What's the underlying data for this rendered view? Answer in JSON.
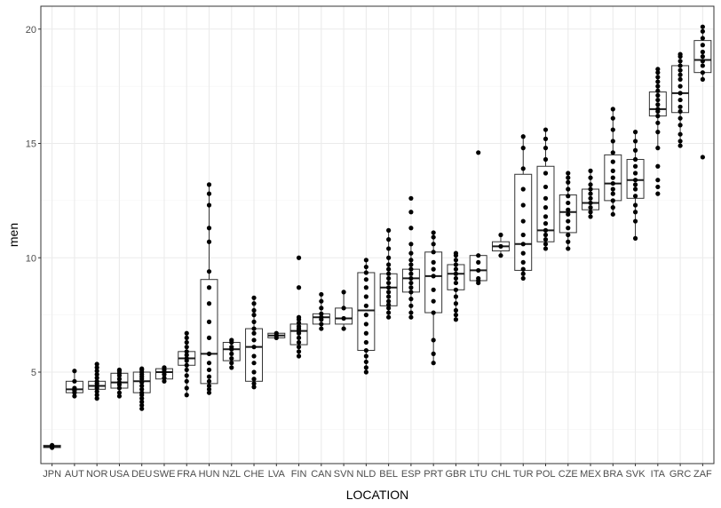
{
  "chart_data": {
    "type": "boxplot",
    "xlabel": "LOCATION",
    "ylabel": "men",
    "ylim": [
      1.0,
      21.0
    ],
    "yticks": [
      5,
      10,
      15,
      20
    ],
    "grid": true,
    "categories": [
      "JPN",
      "AUT",
      "NOR",
      "USA",
      "DEU",
      "SWE",
      "FRA",
      "HUN",
      "NZL",
      "CHE",
      "LVA",
      "FIN",
      "CAN",
      "SVN",
      "NLD",
      "BEL",
      "ESP",
      "PRT",
      "GBR",
      "LTU",
      "CHL",
      "TUR",
      "POL",
      "CZE",
      "MEX",
      "BRA",
      "SVK",
      "ITA",
      "GRC",
      "ZAF"
    ],
    "boxes": [
      {
        "q1": 1.7,
        "median": 1.75,
        "q3": 1.8,
        "whisker_low": 1.7,
        "whisker_high": 1.8
      },
      {
        "q1": 4.1,
        "median": 4.25,
        "q3": 4.6,
        "whisker_low": 3.95,
        "whisker_high": 5.05
      },
      {
        "q1": 4.25,
        "median": 4.4,
        "q3": 4.6,
        "whisker_low": 3.85,
        "whisker_high": 5.35
      },
      {
        "q1": 4.3,
        "median": 4.55,
        "q3": 4.95,
        "whisker_low": 3.95,
        "whisker_high": 5.1
      },
      {
        "q1": 4.1,
        "median": 4.6,
        "q3": 5.0,
        "whisker_low": 3.4,
        "whisker_high": 5.15
      },
      {
        "q1": 4.7,
        "median": 5.0,
        "q3": 5.15,
        "whisker_low": 4.6,
        "whisker_high": 5.2
      },
      {
        "q1": 5.3,
        "median": 5.6,
        "q3": 5.9,
        "whisker_low": 4.0,
        "whisker_high": 6.7
      },
      {
        "q1": 4.5,
        "median": 5.8,
        "q3": 9.05,
        "whisker_low": 4.1,
        "whisker_high": 13.2
      },
      {
        "q1": 5.5,
        "median": 6.0,
        "q3": 6.3,
        "whisker_low": 5.2,
        "whisker_high": 6.4
      },
      {
        "q1": 4.6,
        "median": 6.1,
        "q3": 6.9,
        "whisker_low": 4.35,
        "whisker_high": 8.25
      },
      {
        "q1": 6.5,
        "median": 6.6,
        "q3": 6.7,
        "whisker_low": 6.5,
        "whisker_high": 6.7
      },
      {
        "q1": 6.2,
        "median": 6.8,
        "q3": 7.1,
        "whisker_low": 5.7,
        "whisker_high": 7.4
      },
      {
        "q1": 7.1,
        "median": 7.4,
        "q3": 7.55,
        "whisker_low": 6.9,
        "whisker_high": 8.4
      },
      {
        "q1": 7.1,
        "median": 7.35,
        "q3": 7.8,
        "whisker_low": 6.9,
        "whisker_high": 8.5
      },
      {
        "q1": 5.95,
        "median": 7.7,
        "q3": 9.35,
        "whisker_low": 5.0,
        "whisker_high": 9.9
      },
      {
        "q1": 7.9,
        "median": 8.7,
        "q3": 9.3,
        "whisker_low": 7.4,
        "whisker_high": 11.2
      },
      {
        "q1": 8.5,
        "median": 9.1,
        "q3": 9.5,
        "whisker_low": 7.4,
        "whisker_high": 10.6
      },
      {
        "q1": 7.6,
        "median": 9.2,
        "q3": 10.25,
        "whisker_low": 5.4,
        "whisker_high": 11.1
      },
      {
        "q1": 8.6,
        "median": 9.3,
        "q3": 9.7,
        "whisker_low": 7.3,
        "whisker_high": 10.2
      },
      {
        "q1": 9.0,
        "median": 9.45,
        "q3": 10.1,
        "whisker_low": 8.9,
        "whisker_high": 10.1
      },
      {
        "q1": 10.3,
        "median": 10.5,
        "q3": 10.7,
        "whisker_low": 10.1,
        "whisker_high": 11.0
      },
      {
        "q1": 9.45,
        "median": 10.6,
        "q3": 13.65,
        "whisker_low": 9.1,
        "whisker_high": 15.4
      },
      {
        "q1": 10.7,
        "median": 11.2,
        "q3": 14.0,
        "whisker_low": 10.4,
        "whisker_high": 15.6
      },
      {
        "q1": 11.1,
        "median": 12.0,
        "q3": 12.75,
        "whisker_low": 10.4,
        "whisker_high": 13.7
      },
      {
        "q1": 12.1,
        "median": 12.4,
        "q3": 13.0,
        "whisker_low": 11.8,
        "whisker_high": 13.8
      },
      {
        "q1": 12.5,
        "median": 13.25,
        "q3": 14.5,
        "whisker_low": 11.9,
        "whisker_high": 16.5
      },
      {
        "q1": 12.6,
        "median": 13.4,
        "q3": 14.3,
        "whisker_low": 10.85,
        "whisker_high": 15.5
      },
      {
        "q1": 16.2,
        "median": 16.5,
        "q3": 17.25,
        "whisker_low": 14.8,
        "whisker_high": 18.25
      },
      {
        "q1": 16.35,
        "median": 17.2,
        "q3": 18.4,
        "whisker_low": 15.0,
        "whisker_high": 18.9
      },
      {
        "q1": 18.1,
        "median": 18.65,
        "q3": 19.5,
        "whisker_low": 17.8,
        "whisker_high": 20.1
      }
    ],
    "points": [
      [
        1.7,
        1.75,
        1.8
      ],
      [
        3.95,
        4.1,
        4.2,
        4.3,
        4.6,
        5.05
      ],
      [
        3.85,
        4.0,
        4.15,
        4.3,
        4.4,
        4.5,
        4.6,
        4.75,
        4.9,
        5.05,
        5.2,
        5.35
      ],
      [
        3.95,
        4.1,
        4.3,
        4.45,
        4.55,
        4.7,
        4.85,
        4.95,
        5.05,
        5.1
      ],
      [
        3.4,
        3.55,
        3.7,
        3.85,
        4.0,
        4.1,
        4.25,
        4.4,
        4.55,
        4.7,
        4.8,
        4.9,
        5.0,
        5.1,
        5.15
      ],
      [
        4.6,
        4.75,
        4.9,
        5.0,
        5.1,
        5.2
      ],
      [
        4.0,
        4.3,
        4.6,
        4.85,
        5.1,
        5.3,
        5.5,
        5.6,
        5.75,
        5.9,
        6.1,
        6.3,
        6.5,
        6.7
      ],
      [
        4.1,
        4.25,
        4.4,
        4.6,
        4.8,
        5.1,
        5.4,
        5.8,
        6.5,
        7.2,
        8.0,
        8.7,
        9.4,
        10.7,
        11.3,
        12.3,
        12.8,
        13.2
      ],
      [
        5.2,
        5.4,
        5.6,
        5.8,
        6.0,
        6.1,
        6.3,
        6.4
      ],
      [
        4.35,
        4.5,
        4.7,
        5.0,
        5.4,
        5.7,
        6.1,
        6.4,
        6.7,
        6.9,
        7.2,
        7.5,
        7.7,
        8.0,
        8.25
      ],
      [
        6.5,
        6.6,
        6.7
      ],
      [
        5.7,
        5.9,
        6.1,
        6.3,
        6.5,
        6.7,
        6.8,
        6.9,
        7.0,
        7.15,
        7.3,
        7.4,
        8.7,
        10.0
      ],
      [
        6.9,
        7.1,
        7.3,
        7.4,
        7.55,
        7.8,
        8.1,
        8.4
      ],
      [
        6.9,
        7.35,
        7.8,
        8.5
      ],
      [
        5.0,
        5.2,
        5.45,
        5.7,
        5.95,
        6.3,
        6.7,
        7.1,
        7.5,
        7.9,
        8.3,
        8.7,
        9.05,
        9.35,
        9.6,
        9.9
      ],
      [
        7.4,
        7.6,
        7.8,
        7.95,
        8.1,
        8.3,
        8.5,
        8.7,
        8.9,
        9.1,
        9.3,
        9.5,
        9.7,
        10.0,
        10.4,
        10.8,
        11.2
      ],
      [
        7.4,
        7.6,
        7.9,
        8.2,
        8.5,
        8.7,
        8.9,
        9.1,
        9.3,
        9.5,
        9.7,
        9.9,
        10.2,
        10.6,
        11.3,
        12.0,
        12.6
      ],
      [
        5.4,
        5.8,
        6.4,
        7.6,
        8.1,
        8.6,
        9.2,
        9.5,
        9.8,
        10.25,
        10.6,
        10.9,
        11.1
      ],
      [
        7.3,
        7.5,
        7.7,
        8.0,
        8.3,
        8.6,
        8.9,
        9.1,
        9.3,
        9.5,
        9.7,
        9.9,
        10.1,
        10.2
      ],
      [
        8.9,
        9.0,
        9.1,
        9.45,
        9.8,
        10.1,
        14.6
      ],
      [
        10.1,
        10.5,
        11.0
      ],
      [
        9.1,
        9.3,
        9.5,
        9.8,
        10.2,
        10.6,
        11.0,
        11.6,
        12.3,
        13.0,
        13.9,
        14.8,
        15.3
      ],
      [
        10.4,
        10.6,
        10.8,
        11.0,
        11.2,
        11.5,
        11.8,
        12.2,
        12.6,
        13.1,
        13.7,
        14.3,
        14.8,
        15.2,
        15.6
      ],
      [
        10.4,
        10.7,
        11.0,
        11.3,
        11.6,
        11.9,
        12.1,
        12.4,
        12.7,
        13.0,
        13.3,
        13.5,
        13.7
      ],
      [
        11.8,
        12.0,
        12.2,
        12.4,
        12.6,
        12.8,
        13.0,
        13.2,
        13.5,
        13.8
      ],
      [
        11.9,
        12.2,
        12.5,
        12.8,
        13.0,
        13.25,
        13.5,
        13.8,
        14.2,
        14.6,
        15.1,
        15.6,
        16.1,
        16.5
      ],
      [
        10.85,
        11.6,
        12.0,
        12.3,
        12.7,
        13.0,
        13.2,
        13.4,
        13.7,
        14.0,
        14.3,
        14.7,
        15.1,
        15.5
      ],
      [
        12.8,
        13.1,
        13.4,
        14.0,
        14.8,
        15.5,
        15.9,
        16.2,
        16.4,
        16.5,
        16.7,
        16.9,
        17.1,
        17.3,
        17.5,
        17.7,
        17.9,
        18.1,
        18.25
      ],
      [
        14.9,
        15.1,
        15.4,
        15.8,
        16.1,
        16.4,
        16.6,
        16.9,
        17.2,
        17.5,
        17.8,
        18.0,
        18.2,
        18.4,
        18.6,
        18.8,
        18.9
      ],
      [
        14.4,
        17.8,
        18.1,
        18.4,
        18.6,
        18.8,
        19.0,
        19.3,
        19.6,
        19.9,
        20.1
      ]
    ]
  }
}
